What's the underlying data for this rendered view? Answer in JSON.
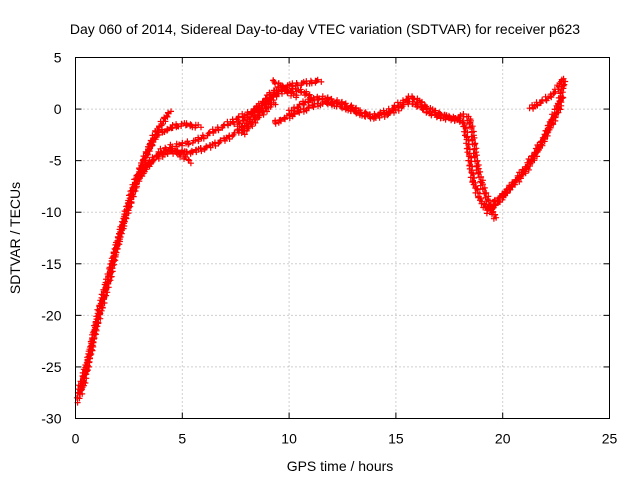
{
  "chart_data": {
    "type": "scatter",
    "title": "Day 060 of 2014, Sidereal Day-to-day VTEC variation (SDTVAR) for receiver p623",
    "xlabel": "GPS time / hours",
    "ylabel": "SDTVAR / TECUs",
    "xlim": [
      0,
      25
    ],
    "ylim": [
      -30,
      5
    ],
    "x_ticks": [
      0,
      5,
      10,
      15,
      20,
      25
    ],
    "y_ticks": [
      -30,
      -25,
      -20,
      -15,
      -10,
      -5,
      0,
      5
    ],
    "grid": true,
    "marker": "plus",
    "colors": {
      "series": "#ff0000",
      "grid": "#a0a0a0",
      "axis": "#000000"
    },
    "series": [
      {
        "points": [
          [
            0.1,
            -28.3
          ],
          [
            0.2,
            -27.0
          ],
          [
            0.35,
            -26.0
          ],
          [
            0.5,
            -25.0
          ],
          [
            0.7,
            -23.5
          ],
          [
            0.9,
            -21.5
          ],
          [
            1.1,
            -19.5
          ],
          [
            1.3,
            -18.0
          ],
          [
            1.5,
            -16.5
          ],
          [
            1.7,
            -15.0
          ],
          [
            1.9,
            -13.5
          ],
          [
            2.1,
            -12.0
          ],
          [
            2.3,
            -10.5
          ],
          [
            2.5,
            -9.0
          ],
          [
            2.7,
            -7.5
          ],
          [
            2.9,
            -6.5
          ],
          [
            3.1,
            -5.5
          ],
          [
            3.3,
            -4.5
          ],
          [
            3.5,
            -3.5
          ],
          [
            3.7,
            -2.5
          ],
          [
            3.9,
            -1.8
          ],
          [
            4.1,
            -1.2
          ],
          [
            4.3,
            -0.6
          ],
          [
            4.4,
            -0.3
          ]
        ]
      },
      {
        "points": [
          [
            0.25,
            -27.5
          ],
          [
            0.45,
            -26.0
          ],
          [
            0.65,
            -24.0
          ],
          [
            0.85,
            -22.0
          ],
          [
            1.05,
            -20.5
          ],
          [
            1.25,
            -19.0
          ],
          [
            1.45,
            -17.5
          ],
          [
            1.65,
            -16.0
          ],
          [
            1.85,
            -14.0
          ],
          [
            2.05,
            -12.5
          ],
          [
            2.25,
            -11.0
          ],
          [
            2.45,
            -9.8
          ],
          [
            2.65,
            -8.5
          ],
          [
            2.85,
            -7.3
          ],
          [
            3.05,
            -6.5
          ],
          [
            3.25,
            -5.8
          ],
          [
            3.45,
            -5.3
          ],
          [
            3.65,
            -4.8
          ],
          [
            3.85,
            -4.4
          ],
          [
            4.05,
            -4.0
          ],
          [
            4.3,
            -3.8
          ],
          [
            4.6,
            -4.0
          ],
          [
            4.9,
            -4.4
          ],
          [
            5.2,
            -4.8
          ],
          [
            5.4,
            -5.1
          ]
        ]
      },
      {
        "points": [
          [
            3.0,
            -6.0
          ],
          [
            3.2,
            -5.0
          ],
          [
            3.4,
            -4.0
          ],
          [
            3.6,
            -3.2
          ],
          [
            3.8,
            -2.6
          ],
          [
            4.0,
            -2.2
          ],
          [
            4.3,
            -2.0
          ],
          [
            4.6,
            -1.7
          ],
          [
            4.9,
            -1.5
          ],
          [
            5.2,
            -1.5
          ],
          [
            5.5,
            -1.6
          ],
          [
            5.8,
            -1.7
          ]
        ]
      },
      {
        "points": [
          [
            3.0,
            -6.5
          ],
          [
            3.3,
            -5.6
          ],
          [
            3.6,
            -5.0
          ],
          [
            3.9,
            -4.6
          ],
          [
            4.2,
            -4.3
          ],
          [
            4.5,
            -4.2
          ],
          [
            4.8,
            -4.1
          ],
          [
            5.1,
            -4.2
          ],
          [
            5.4,
            -4.2
          ],
          [
            5.7,
            -4.0
          ],
          [
            6.0,
            -3.8
          ],
          [
            6.3,
            -3.6
          ],
          [
            6.6,
            -3.3
          ],
          [
            6.9,
            -3.0
          ],
          [
            7.2,
            -2.7
          ],
          [
            7.5,
            -2.3
          ],
          [
            7.8,
            -1.8
          ],
          [
            8.1,
            -1.3
          ],
          [
            8.4,
            -0.7
          ],
          [
            8.7,
            -0.1
          ],
          [
            9.0,
            0.6
          ],
          [
            9.3,
            1.2
          ],
          [
            9.6,
            1.6
          ],
          [
            9.9,
            1.8
          ],
          [
            10.2,
            1.9
          ],
          [
            10.5,
            1.8
          ],
          [
            10.8,
            1.5
          ],
          [
            11.1,
            1.0
          ]
        ]
      },
      {
        "points": [
          [
            4.5,
            -3.6
          ],
          [
            5.0,
            -3.4
          ],
          [
            5.5,
            -3.2
          ],
          [
            6.0,
            -2.7
          ],
          [
            6.5,
            -2.1
          ],
          [
            7.0,
            -1.6
          ],
          [
            7.5,
            -1.0
          ],
          [
            8.0,
            -0.5
          ],
          [
            8.4,
            -0.1
          ],
          [
            8.8,
            0.5
          ],
          [
            9.2,
            1.3
          ],
          [
            9.5,
            1.9
          ],
          [
            9.8,
            2.2
          ],
          [
            10.1,
            2.3
          ],
          [
            10.4,
            2.4
          ],
          [
            10.7,
            2.5
          ],
          [
            11.0,
            2.6
          ],
          [
            11.3,
            2.7
          ],
          [
            11.5,
            2.7
          ]
        ]
      },
      {
        "points": [
          [
            7.5,
            -1.6
          ],
          [
            7.8,
            -1.2
          ],
          [
            8.1,
            -0.7
          ],
          [
            8.4,
            -0.1
          ],
          [
            8.7,
            0.5
          ],
          [
            9.0,
            1.2
          ],
          [
            9.3,
            1.8
          ]
        ]
      },
      {
        "points": [
          [
            7.8,
            -2.4
          ],
          [
            8.1,
            -1.8
          ],
          [
            8.4,
            -1.1
          ],
          [
            8.7,
            -0.5
          ],
          [
            9.0,
            0.1
          ],
          [
            9.3,
            0.6
          ]
        ]
      },
      {
        "points": [
          [
            9.2,
            2.8
          ],
          [
            9.5,
            2.4
          ],
          [
            9.8,
            1.9
          ],
          [
            10.1,
            1.5
          ],
          [
            10.4,
            1.2
          ]
        ]
      },
      {
        "points": [
          [
            9.3,
            -1.3
          ],
          [
            9.6,
            -1.1
          ],
          [
            9.9,
            -0.8
          ],
          [
            10.2,
            -0.5
          ],
          [
            10.5,
            -0.2
          ],
          [
            10.8,
            0.0
          ],
          [
            11.1,
            0.3
          ],
          [
            11.4,
            0.5
          ],
          [
            11.7,
            0.6
          ],
          [
            12.0,
            0.5
          ],
          [
            12.3,
            0.3
          ],
          [
            12.6,
            0.1
          ],
          [
            12.9,
            -0.1
          ],
          [
            13.2,
            -0.4
          ],
          [
            13.5,
            -0.6
          ],
          [
            13.8,
            -0.8
          ],
          [
            14.1,
            -0.8
          ],
          [
            14.4,
            -0.6
          ],
          [
            14.7,
            -0.4
          ],
          [
            15.0,
            -0.1
          ],
          [
            15.3,
            0.3
          ],
          [
            15.6,
            0.7
          ],
          [
            15.9,
            0.5
          ],
          [
            16.2,
            0.1
          ],
          [
            16.5,
            -0.3
          ],
          [
            16.8,
            -0.6
          ],
          [
            17.1,
            -0.8
          ],
          [
            17.4,
            -0.9
          ],
          [
            17.7,
            -1.0
          ],
          [
            18.0,
            -1.1
          ],
          [
            18.2,
            -1.5
          ],
          [
            18.3,
            -2.5
          ],
          [
            18.4,
            -4.0
          ],
          [
            18.5,
            -5.5
          ],
          [
            18.6,
            -6.8
          ],
          [
            18.8,
            -8.0
          ],
          [
            19.0,
            -9.0
          ],
          [
            19.2,
            -9.5
          ],
          [
            19.5,
            -10.0
          ],
          [
            19.7,
            -10.6
          ]
        ]
      },
      {
        "points": [
          [
            10.0,
            -0.3
          ],
          [
            10.3,
            0.1
          ],
          [
            10.6,
            0.5
          ],
          [
            10.9,
            0.8
          ],
          [
            11.2,
            1.0
          ],
          [
            11.5,
            1.1
          ],
          [
            11.8,
            1.0
          ],
          [
            12.1,
            0.8
          ],
          [
            12.4,
            0.6
          ],
          [
            12.7,
            0.4
          ],
          [
            13.0,
            0.1
          ],
          [
            13.3,
            -0.2
          ],
          [
            13.6,
            -0.5
          ],
          [
            13.9,
            -0.7
          ],
          [
            14.2,
            -0.5
          ],
          [
            14.5,
            -0.3
          ],
          [
            14.8,
            0.0
          ],
          [
            15.1,
            0.4
          ],
          [
            15.4,
            0.8
          ],
          [
            15.7,
            1.2
          ],
          [
            16.0,
            0.9
          ],
          [
            16.3,
            0.4
          ],
          [
            16.6,
            0.0
          ],
          [
            16.9,
            -0.3
          ],
          [
            17.2,
            -0.6
          ],
          [
            17.5,
            -0.8
          ],
          [
            17.8,
            -0.9
          ],
          [
            18.1,
            -0.7
          ],
          [
            18.3,
            -0.6
          ],
          [
            18.5,
            -1.3
          ],
          [
            18.6,
            -2.5
          ],
          [
            18.7,
            -4.0
          ],
          [
            18.8,
            -5.5
          ],
          [
            19.0,
            -7.0
          ],
          [
            19.2,
            -8.3
          ],
          [
            19.4,
            -9.3
          ],
          [
            19.6,
            -9.8
          ]
        ]
      },
      {
        "points": [
          [
            19.3,
            -10.0
          ],
          [
            19.6,
            -9.4
          ],
          [
            19.9,
            -8.8
          ],
          [
            20.2,
            -8.0
          ],
          [
            20.5,
            -7.2
          ],
          [
            20.8,
            -6.4
          ],
          [
            21.1,
            -5.6
          ],
          [
            21.4,
            -4.6
          ],
          [
            21.7,
            -3.6
          ],
          [
            22.0,
            -2.6
          ],
          [
            22.2,
            -1.8
          ],
          [
            22.4,
            -1.0
          ],
          [
            22.6,
            -0.2
          ],
          [
            22.7,
            0.6
          ],
          [
            22.8,
            1.2
          ]
        ]
      },
      {
        "points": [
          [
            19.5,
            -9.2
          ],
          [
            19.8,
            -8.7
          ],
          [
            20.1,
            -8.1
          ],
          [
            20.4,
            -7.5
          ],
          [
            20.7,
            -6.9
          ],
          [
            21.0,
            -6.2
          ],
          [
            21.3,
            -5.3
          ],
          [
            21.6,
            -4.2
          ],
          [
            21.9,
            -3.0
          ],
          [
            22.1,
            -2.0
          ],
          [
            22.3,
            -1.0
          ],
          [
            22.5,
            0.0
          ],
          [
            22.7,
            1.0
          ],
          [
            22.8,
            2.0
          ],
          [
            22.85,
            2.8
          ]
        ]
      },
      {
        "points": [
          [
            21.3,
            0.0
          ],
          [
            21.6,
            0.5
          ],
          [
            21.9,
            0.8
          ],
          [
            22.2,
            1.2
          ],
          [
            22.5,
            1.8
          ],
          [
            22.7,
            2.4
          ],
          [
            22.8,
            3.0
          ]
        ]
      }
    ]
  }
}
